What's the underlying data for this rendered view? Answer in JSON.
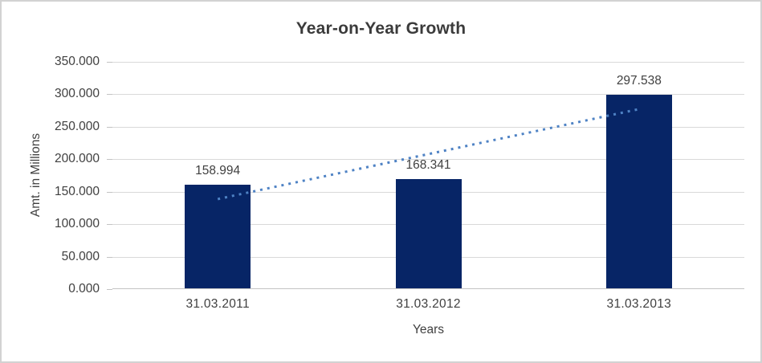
{
  "window": {
    "background": "#ffffff",
    "border_color": "#d2d2d2"
  },
  "chart_data": {
    "type": "bar",
    "title": "Year-on-Year Growth",
    "xlabel": "Years",
    "ylabel": "Amt. in Millions",
    "categories": [
      "31.03.2011",
      "31.03.2012",
      "31.03.2013"
    ],
    "values": [
      158.994,
      168.341,
      297.538
    ],
    "data_labels": [
      "158.994",
      "168.341",
      "297.538"
    ],
    "ylim": [
      0,
      350
    ],
    "y_tick_step": 50,
    "y_tick_labels": [
      "0.000",
      "50.000",
      "100.000",
      "150.000",
      "200.000",
      "250.000",
      "300.000",
      "350.000"
    ],
    "grid": true,
    "legend": "none",
    "colors": {
      "bar": "#072566",
      "trendline": "#4e82c4",
      "gridline": "#d9d9d9",
      "axis_line": "#c3c3c3",
      "text": "#404040",
      "title_text": "#3b3b3b"
    },
    "trendline": {
      "type": "linear",
      "style": "dotted",
      "start_value": 138.7,
      "end_value": 277.2
    }
  }
}
